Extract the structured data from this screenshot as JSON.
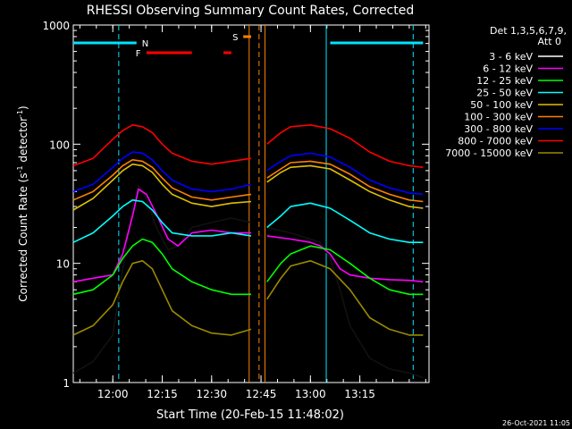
{
  "chart_data": {
    "type": "line",
    "title": "RHESSI Observing Summary Count Rates, Corrected",
    "xlabel": "Start Time (20-Feb-15 11:48:02)",
    "ylabel": "Corrected Count Rate (s⁻¹ detector⁻¹)",
    "ylabel_parts": [
      "Corrected Count Rate (s",
      "-1",
      " detector",
      "-1",
      ")"
    ],
    "yscale": "log",
    "ylim": [
      1,
      1000
    ],
    "xlim_minutes": [
      11.8,
      13.6
    ],
    "y_ticks": [
      1,
      10,
      100,
      1000
    ],
    "y_tick_labels": [
      "1",
      "10",
      "100",
      "1000"
    ],
    "x_ticks_min": [
      12.0,
      12.25,
      12.5,
      12.75,
      13.0,
      13.25
    ],
    "x_tick_labels": [
      "12:00",
      "12:15",
      "12:30",
      "12:45",
      "13:00",
      "13:15"
    ],
    "legend_header": [
      "Det 1,3,5,6,7,9,",
      "Att 0"
    ],
    "legend_position": "right",
    "footer_date": "26-Oct-2021 11:05",
    "flags": [
      {
        "label": "N",
        "color": "#00e5ff",
        "segments": [
          [
            11.8,
            12.12
          ],
          [
            13.1,
            13.57
          ]
        ]
      },
      {
        "label": "F",
        "color": "#ff0000",
        "segments": [
          [
            12.17,
            12.4
          ],
          [
            12.56,
            12.6
          ]
        ]
      },
      {
        "label": "S",
        "color": "#ff8000",
        "segments": [
          [
            12.66,
            12.7
          ]
        ]
      }
    ],
    "vlines": [
      {
        "x": 12.03,
        "color": "#00e5ff",
        "style": "dashed"
      },
      {
        "x": 12.69,
        "color": "#ff8000",
        "style": "solid"
      },
      {
        "x": 12.74,
        "color": "#ff8000",
        "style": "dashed"
      },
      {
        "x": 12.77,
        "color": "#ff8000",
        "style": "solid"
      },
      {
        "x": 13.08,
        "color": "#00e5ff",
        "style": "solid"
      },
      {
        "x": 13.52,
        "color": "#00e5ff",
        "style": "dashed"
      }
    ],
    "series": [
      {
        "name": "3 - 6 keV",
        "color": "#000000",
        "x": [
          11.8,
          11.9,
          12.0,
          12.05,
          12.1,
          12.13,
          12.17,
          12.22,
          12.28,
          12.33,
          12.4,
          12.5,
          12.6,
          12.7,
          12.78,
          12.9,
          13.0,
          13.05,
          13.1,
          13.15,
          13.2,
          13.3,
          13.4,
          13.5,
          13.57
        ],
        "y": [
          1.2,
          1.5,
          2.5,
          9,
          30,
          45,
          35,
          20,
          13,
          14,
          20,
          22,
          24,
          22,
          20,
          18,
          16,
          15,
          11,
          6,
          3,
          1.6,
          1.3,
          1.2,
          1.1
        ]
      },
      {
        "name": "6 - 12 keV",
        "color": "#ff00ff",
        "x": [
          11.8,
          11.9,
          12.0,
          12.05,
          12.1,
          12.13,
          12.17,
          12.22,
          12.28,
          12.33,
          12.4,
          12.5,
          12.6,
          12.7,
          12.78,
          12.9,
          13.0,
          13.05,
          13.1,
          13.15,
          13.2,
          13.3,
          13.4,
          13.5,
          13.57
        ],
        "y": [
          7,
          7.5,
          8,
          12,
          25,
          42,
          38,
          26,
          16,
          14,
          18,
          19,
          18,
          18,
          17,
          16,
          15,
          14,
          12,
          9,
          8,
          7.5,
          7.3,
          7.2,
          7
        ]
      },
      {
        "name": "12 - 25 keV",
        "color": "#00ff00",
        "x": [
          11.8,
          11.9,
          12.0,
          12.05,
          12.1,
          12.15,
          12.2,
          12.25,
          12.3,
          12.4,
          12.5,
          12.6,
          12.7,
          12.78,
          12.85,
          12.9,
          13.0,
          13.1,
          13.2,
          13.3,
          13.4,
          13.5,
          13.57
        ],
        "y": [
          5.5,
          6,
          8,
          11,
          14,
          16,
          15,
          12,
          9,
          7,
          6,
          5.5,
          5.5,
          7,
          10,
          12,
          14,
          13,
          10,
          7.5,
          6,
          5.5,
          5.5
        ]
      },
      {
        "name": "25 - 50 keV",
        "color": "#00ffff",
        "x": [
          11.8,
          11.9,
          12.0,
          12.05,
          12.1,
          12.15,
          12.2,
          12.25,
          12.3,
          12.4,
          12.5,
          12.6,
          12.7,
          12.78,
          12.85,
          12.9,
          13.0,
          13.1,
          13.2,
          13.3,
          13.4,
          13.5,
          13.57
        ],
        "y": [
          15,
          18,
          25,
          30,
          34,
          33,
          28,
          22,
          18,
          17,
          17,
          18,
          17,
          20,
          25,
          30,
          32,
          29,
          23,
          18,
          16,
          15,
          15
        ]
      },
      {
        "name": "50 - 100 keV",
        "color": "#e0c000",
        "x": [
          11.8,
          11.9,
          12.0,
          12.05,
          12.1,
          12.15,
          12.2,
          12.25,
          12.3,
          12.4,
          12.5,
          12.6,
          12.7,
          12.78,
          12.85,
          12.9,
          13.0,
          13.1,
          13.2,
          13.3,
          13.4,
          13.5,
          13.57
        ],
        "y": [
          28,
          35,
          50,
          60,
          68,
          66,
          58,
          46,
          38,
          32,
          30,
          32,
          33,
          48,
          58,
          64,
          66,
          62,
          50,
          40,
          34,
          30,
          29
        ]
      },
      {
        "name": "100 - 300 keV",
        "color": "#ff8000",
        "x": [
          11.8,
          11.9,
          12.0,
          12.05,
          12.1,
          12.15,
          12.2,
          12.25,
          12.3,
          12.4,
          12.5,
          12.6,
          12.7,
          12.78,
          12.85,
          12.9,
          13.0,
          13.1,
          13.2,
          13.3,
          13.4,
          13.5,
          13.57
        ],
        "y": [
          34,
          40,
          55,
          66,
          74,
          72,
          64,
          52,
          43,
          36,
          34,
          36,
          38,
          52,
          62,
          70,
          72,
          68,
          56,
          44,
          38,
          34,
          33
        ]
      },
      {
        "name": "300 - 800 keV",
        "color": "#0000ff",
        "x": [
          11.8,
          11.9,
          12.0,
          12.05,
          12.1,
          12.15,
          12.2,
          12.25,
          12.3,
          12.4,
          12.5,
          12.6,
          12.7,
          12.78,
          12.85,
          12.9,
          13.0,
          13.1,
          13.2,
          13.3,
          13.4,
          13.5,
          13.57
        ],
        "y": [
          40,
          46,
          64,
          76,
          86,
          84,
          74,
          60,
          50,
          42,
          40,
          42,
          46,
          60,
          72,
          80,
          84,
          78,
          64,
          50,
          43,
          39,
          38
        ]
      },
      {
        "name": "800 - 7000 keV",
        "color": "#ff0000",
        "x": [
          11.8,
          11.9,
          12.0,
          12.05,
          12.1,
          12.15,
          12.2,
          12.25,
          12.3,
          12.4,
          12.5,
          12.6,
          12.7,
          12.78,
          12.85,
          12.9,
          13.0,
          13.1,
          13.2,
          13.3,
          13.4,
          13.5,
          13.57
        ],
        "y": [
          66,
          76,
          110,
          130,
          145,
          140,
          125,
          100,
          84,
          72,
          68,
          72,
          76,
          100,
          125,
          140,
          145,
          135,
          112,
          86,
          72,
          66,
          64
        ]
      },
      {
        "name": "7000 - 15000 keV",
        "color": "#9a8a00",
        "x": [
          11.8,
          11.9,
          12.0,
          12.05,
          12.1,
          12.15,
          12.2,
          12.25,
          12.3,
          12.4,
          12.5,
          12.6,
          12.7,
          12.78,
          12.85,
          12.9,
          13.0,
          13.1,
          13.2,
          13.3,
          13.4,
          13.5,
          13.57
        ],
        "y": [
          2.5,
          3,
          4.5,
          7,
          10,
          10.5,
          9,
          6,
          4,
          3,
          2.6,
          2.5,
          2.8,
          5,
          7.5,
          9.5,
          10.5,
          9,
          6,
          3.5,
          2.8,
          2.5,
          2.5
        ]
      }
    ]
  }
}
